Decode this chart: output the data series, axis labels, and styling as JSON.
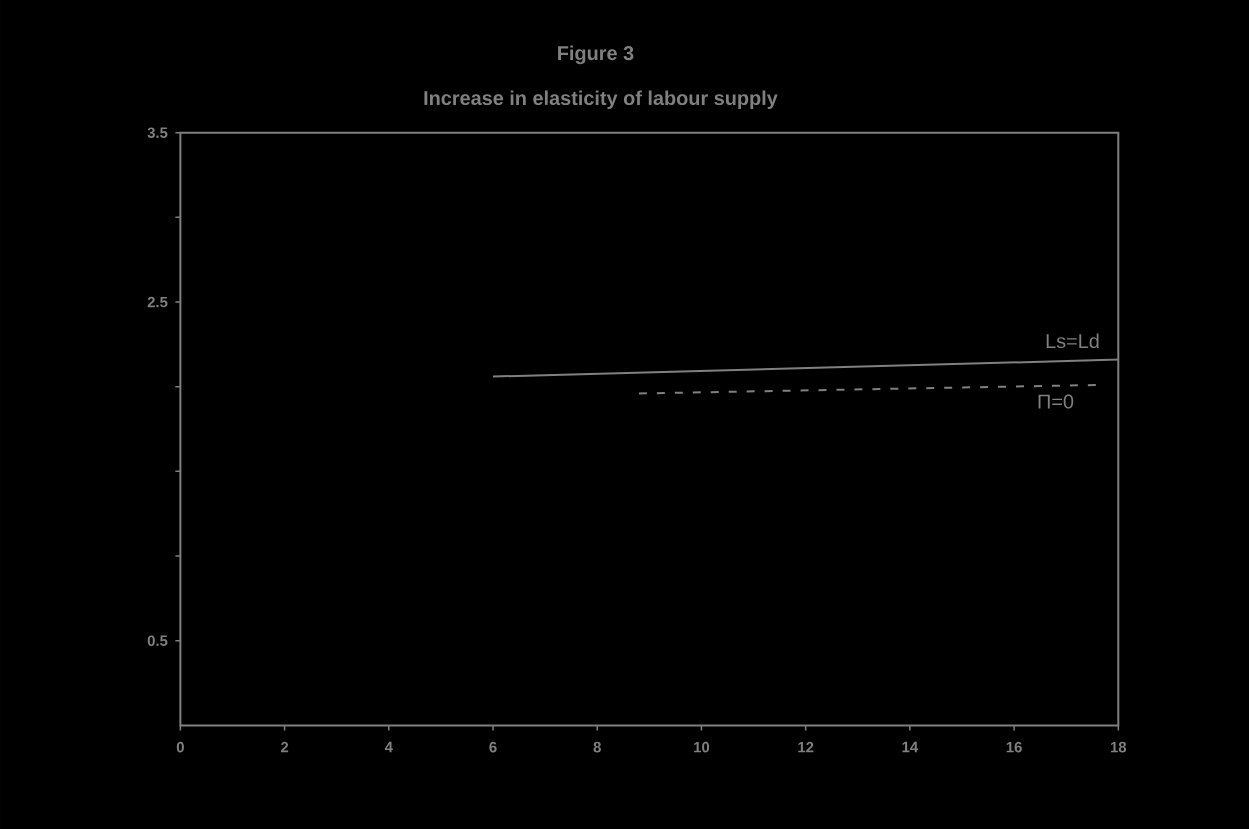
{
  "chart_data": {
    "type": "line",
    "title": "Figure 3",
    "subtitle": "Increase in elasticity of labour supply",
    "xlim": [
      0,
      18
    ],
    "xticks": [
      0,
      2,
      4,
      6,
      8,
      10,
      12,
      14,
      16,
      18
    ],
    "ylim": [
      0,
      3.5
    ],
    "yticks": [
      {
        "value": 0.5,
        "label": "0.5"
      },
      {
        "value": 1.0,
        "label": null
      },
      {
        "value": 1.5,
        "label": null
      },
      {
        "value": 2.0,
        "label": null
      },
      {
        "value": 2.5,
        "label": "2.5"
      },
      {
        "value": 3.0,
        "label": null
      },
      {
        "value": 3.5,
        "label": "3.5"
      }
    ],
    "grid": false,
    "legend": false,
    "marker": "none",
    "series": [
      {
        "name": "Ls=Ld",
        "color": "#808080",
        "line_style": "solid",
        "x": [
          6,
          18
        ],
        "values": [
          2.06,
          2.16
        ]
      },
      {
        "name": "Π=0",
        "color": "#808080",
        "line_style": "dashed",
        "x": [
          8.8,
          17.6
        ],
        "values": [
          1.96,
          2.01
        ]
      }
    ]
  }
}
